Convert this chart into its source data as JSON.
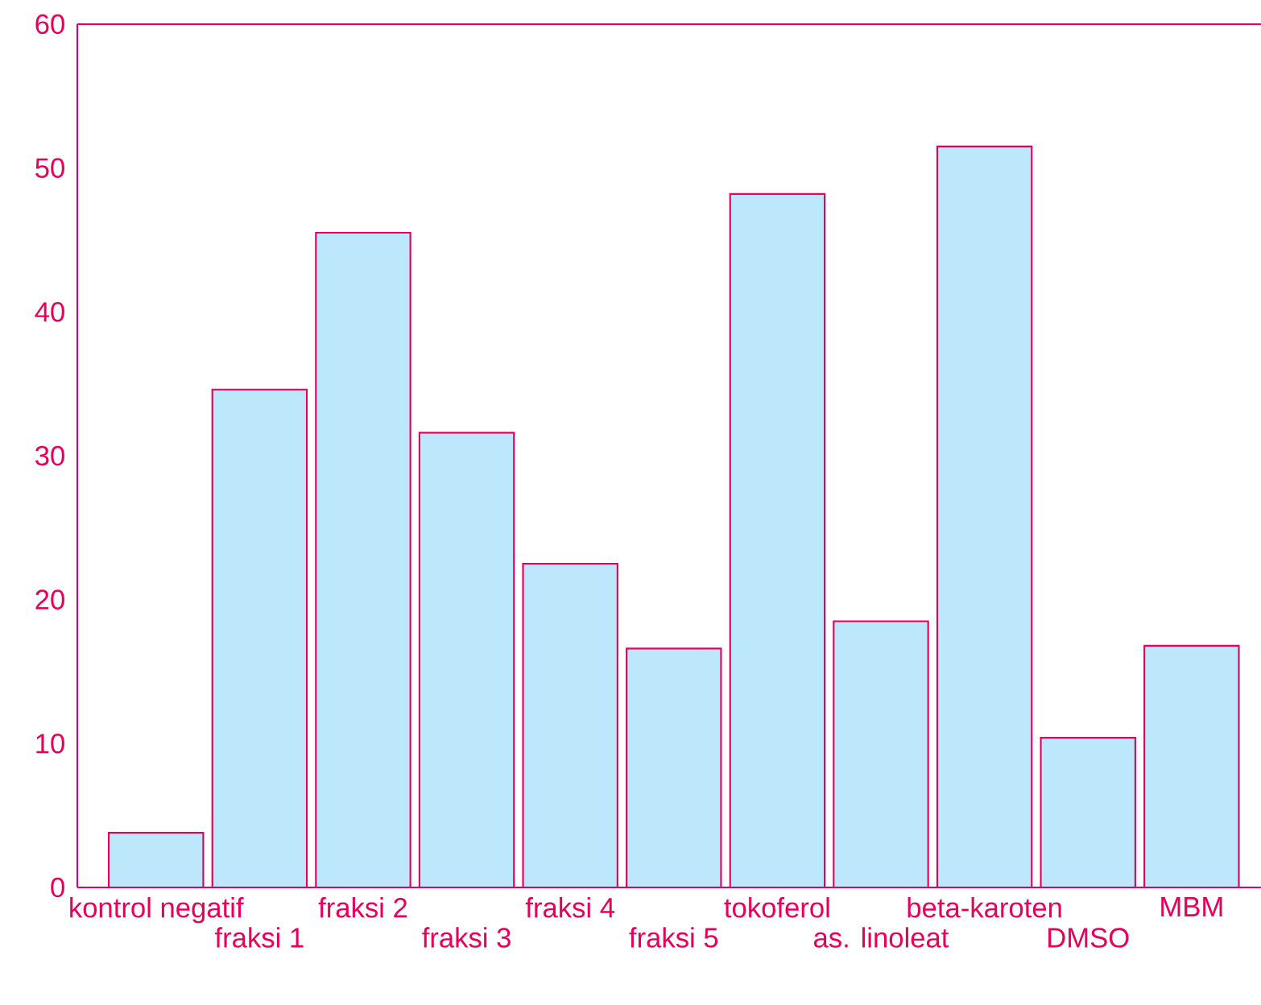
{
  "chart_data": {
    "type": "bar",
    "categories": [
      "kontrol negatif",
      "fraksi 1",
      "fraksi 2",
      "fraksi 3",
      "fraksi 4",
      "fraksi 5",
      "tokoferol",
      "as. linoleat",
      "beta-karoten",
      "DMSO",
      "MBM"
    ],
    "values": [
      3.8,
      34.6,
      45.5,
      31.6,
      22.5,
      16.6,
      48.2,
      18.5,
      51.5,
      10.4,
      16.8
    ],
    "color": "#bde8fb",
    "ylim": [
      0,
      60
    ],
    "yticks": [
      0,
      10,
      20,
      30,
      40,
      50,
      60
    ],
    "grid": false
  }
}
